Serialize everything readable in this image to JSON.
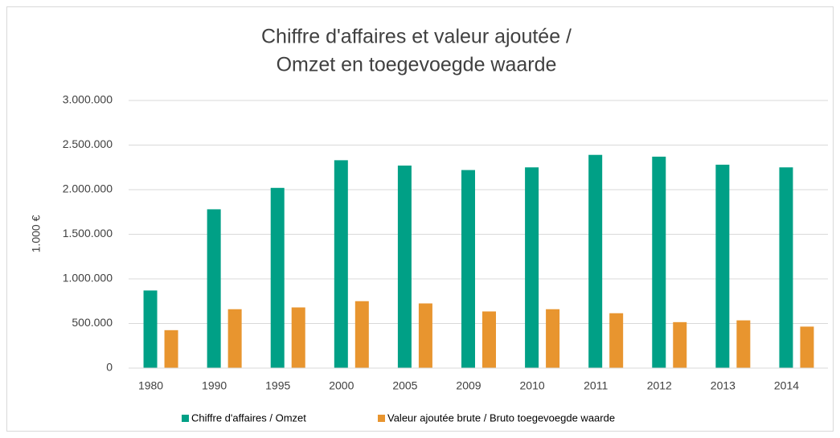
{
  "chart_data": {
    "type": "bar",
    "title": [
      "Chiffre d'affaires et valeur ajoutée /",
      "Omzet en toegevoegde waarde"
    ],
    "y_label": "1.000 €",
    "categories": [
      "1980",
      "1990",
      "1995",
      "2000",
      "2005",
      "2009",
      "2010",
      "2011",
      "2012",
      "2013",
      "2014"
    ],
    "series": [
      {
        "name": "Chiffre d'affaires / Omzet",
        "color": "#00a086",
        "values": [
          870000,
          1780000,
          2020000,
          2330000,
          2270000,
          2220000,
          2250000,
          2390000,
          2370000,
          2280000,
          2250000
        ]
      },
      {
        "name": "Valeur ajoutée brute / Bruto toegevoegde waarde",
        "color": "#e8952f",
        "values": [
          425000,
          660000,
          680000,
          750000,
          725000,
          635000,
          660000,
          615000,
          515000,
          535000,
          465000
        ]
      }
    ],
    "ylim": [
      0,
      3000000
    ],
    "yticks": [
      0,
      {
        "value": 500000,
        "label": "500.000"
      },
      {
        "value": 1000000,
        "label": "1.000.000"
      },
      {
        "value": 1500000,
        "label": "1.500.000"
      },
      {
        "value": 2000000,
        "label": "2.000.000"
      },
      {
        "value": 2500000,
        "label": "2.500.000"
      },
      {
        "value": 3000000,
        "label": "3.000.000"
      }
    ],
    "grid": true,
    "legend": "bottom"
  }
}
